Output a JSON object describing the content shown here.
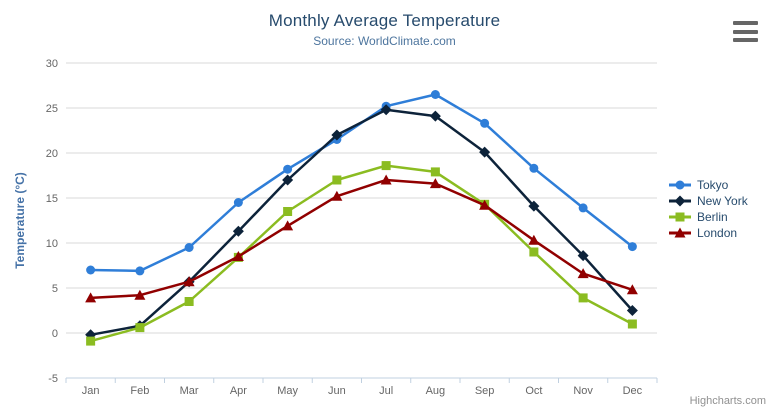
{
  "chart_data": {
    "type": "line",
    "title": "Monthly Average Temperature",
    "subtitle": "Source: WorldClimate.com",
    "xlabel": "",
    "ylabel": "Temperature (°C)",
    "ylim": [
      -5,
      30
    ],
    "ytick_step": 5,
    "grid": true,
    "legend_position": "right",
    "categories": [
      "Jan",
      "Feb",
      "Mar",
      "Apr",
      "May",
      "Jun",
      "Jul",
      "Aug",
      "Sep",
      "Oct",
      "Nov",
      "Dec"
    ],
    "series": [
      {
        "name": "Tokyo",
        "color": "#2f7ed8",
        "marker": "circle",
        "values": [
          7.0,
          6.9,
          9.5,
          14.5,
          18.2,
          21.5,
          25.2,
          26.5,
          23.3,
          18.3,
          13.9,
          9.6
        ]
      },
      {
        "name": "New York",
        "color": "#0d233a",
        "marker": "diamond",
        "values": [
          -0.2,
          0.8,
          5.7,
          11.3,
          17.0,
          22.0,
          24.8,
          24.1,
          20.1,
          14.1,
          8.6,
          2.5
        ]
      },
      {
        "name": "Berlin",
        "color": "#8bbc21",
        "marker": "square",
        "values": [
          -0.9,
          0.6,
          3.5,
          8.4,
          13.5,
          17.0,
          18.6,
          17.9,
          14.3,
          9.0,
          3.9,
          1.0
        ]
      },
      {
        "name": "London",
        "color": "#910000",
        "marker": "triangle",
        "values": [
          3.9,
          4.2,
          5.7,
          8.5,
          11.9,
          15.2,
          17.0,
          16.6,
          14.2,
          10.3,
          6.6,
          4.8
        ]
      }
    ]
  },
  "credits": "Highcharts.com",
  "menu": {
    "icon": "hamburger-menu-icon"
  },
  "palette": {
    "title_text": "#274b6d",
    "subtitle_text": "#4d759e",
    "axis_title_text": "#4572a7",
    "axis_label_text": "#666666",
    "gridline": "#d8d8d8",
    "axis_line": "#c0d0e0",
    "legend_text": "#274b6d",
    "credits_text": "#909090",
    "menu_icon": "#666666"
  }
}
